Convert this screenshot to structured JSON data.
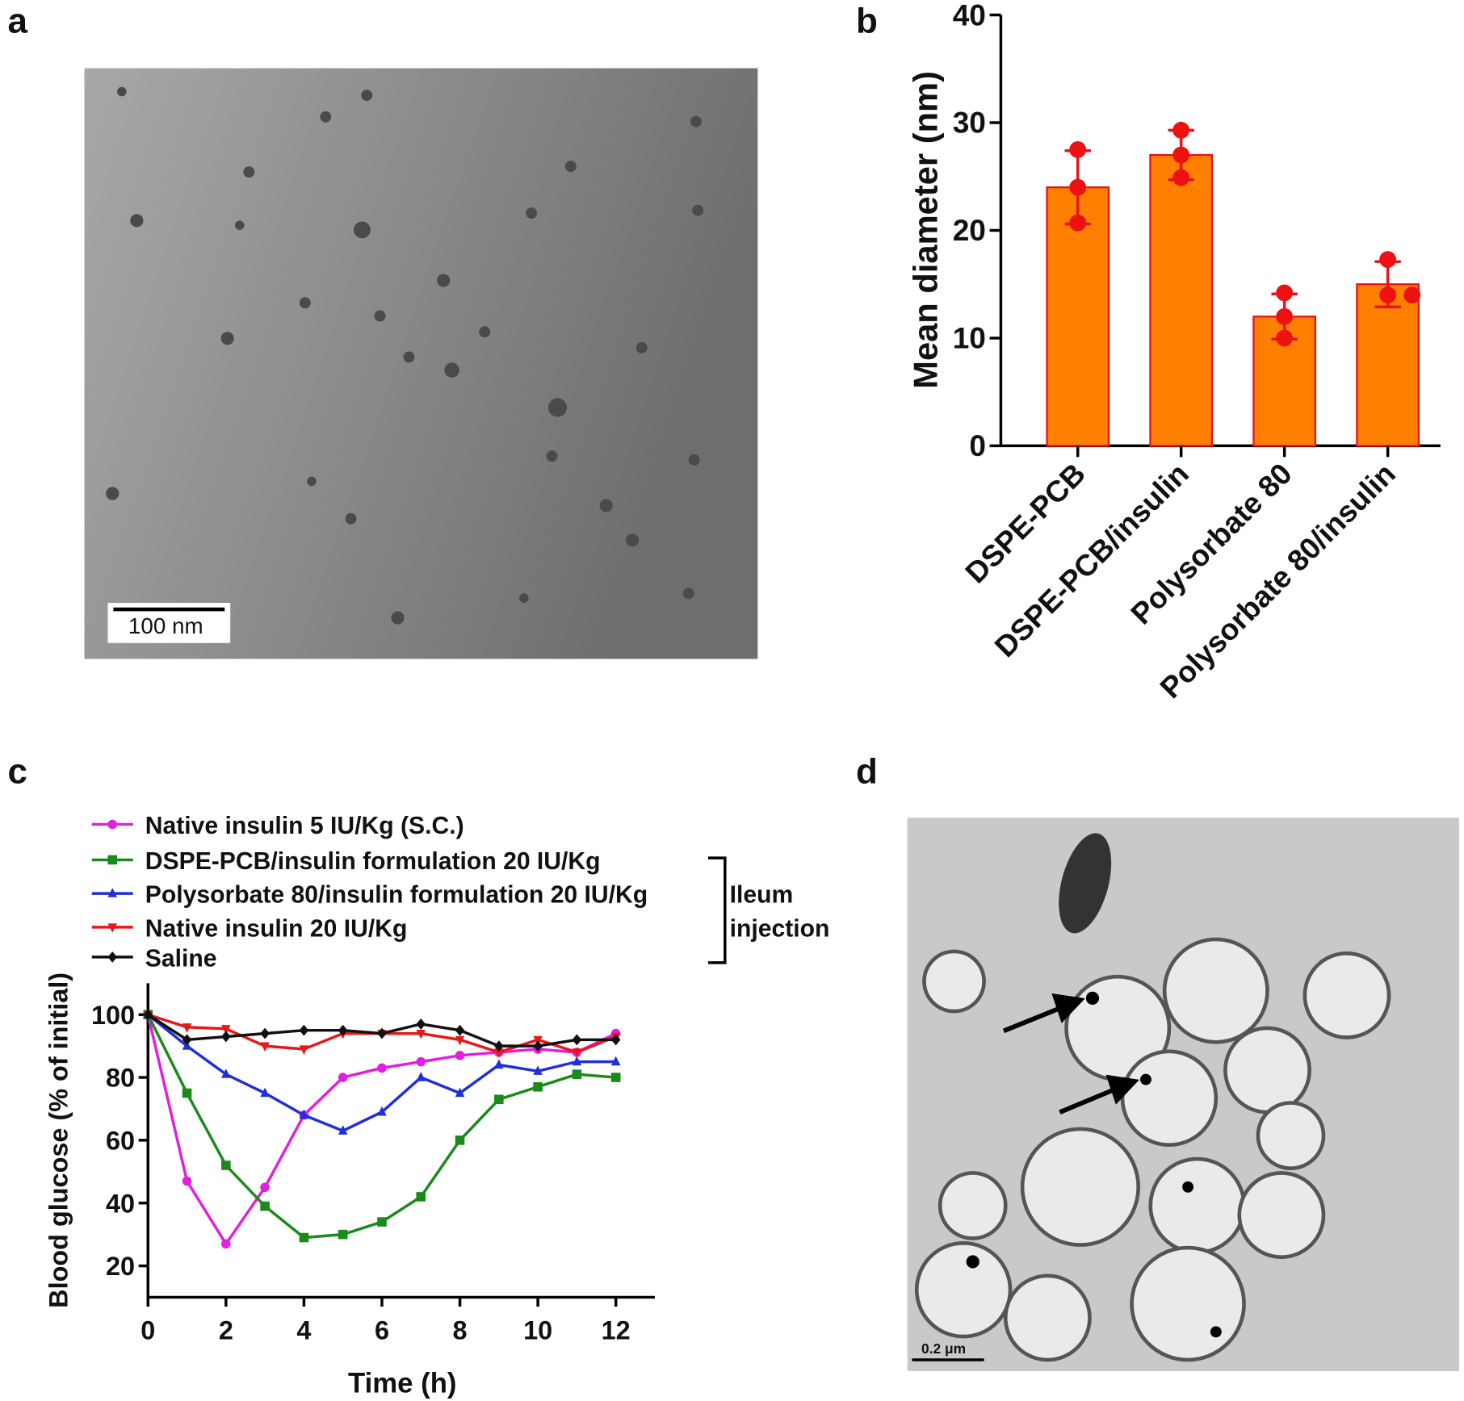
{
  "figure": {
    "panels": [
      {
        "label": "a",
        "scale_bar": "100 nm"
      },
      {
        "label": "b"
      },
      {
        "label": "c"
      },
      {
        "label": "d",
        "scale_bar": "0.2 μm"
      }
    ]
  },
  "chart_data": [
    {
      "type": "bar",
      "ylabel": "Mean diameter (nm)",
      "categories": [
        "DSPE-PCB",
        "DSPE-PCB/insulin",
        "Polysorbate 80",
        "Polysorbate 80/insulin"
      ],
      "values": [
        24,
        27,
        12,
        15
      ],
      "errors": [
        3.4,
        2.3,
        2.1,
        2.1
      ],
      "points": [
        [
          27.5,
          24,
          20.7
        ],
        [
          29.3,
          27,
          24.9
        ],
        [
          14.2,
          12,
          10
        ],
        [
          17.3,
          14,
          14
        ]
      ],
      "color": "#ff8000",
      "edge_color": "#e8121e",
      "point_color": "#ee1111",
      "ylim": [
        0,
        40
      ],
      "yticks": [
        0,
        10,
        20,
        30,
        40
      ]
    },
    {
      "type": "line",
      "xlabel": "Time (h)",
      "ylabel": "Blood glucose (% of initial)",
      "x": [
        0,
        1,
        2,
        3,
        4,
        5,
        6,
        7,
        8,
        9,
        10,
        11,
        12
      ],
      "series": [
        {
          "name": "Native insulin 5 IU/Kg (S.C.)",
          "color": "#e020e0",
          "marker": "circle",
          "values": [
            100,
            47,
            27,
            45,
            68,
            80,
            83,
            85,
            87,
            88,
            89,
            88,
            94
          ]
        },
        {
          "name": "DSPE-PCB/insulin formulation 20 IU/Kg",
          "color": "#1a8a1a",
          "marker": "square",
          "values": [
            100,
            75,
            52,
            39,
            29,
            30,
            34,
            42,
            60,
            73,
            77,
            81,
            80
          ]
        },
        {
          "name": "Polysorbate 80/insulin formulation  20 IU/Kg",
          "color": "#2030d8",
          "marker": "triangle-up",
          "values": [
            100,
            90,
            81,
            75,
            68,
            63,
            69,
            80,
            75,
            84,
            82,
            85,
            85
          ]
        },
        {
          "name": "Native insulin 20 IU/Kg",
          "color": "#e81818",
          "marker": "triangle-down",
          "values": [
            100,
            96,
            95.5,
            90,
            89,
            94,
            94,
            94,
            92,
            88,
            92,
            88,
            93
          ]
        },
        {
          "name": "Saline",
          "color": "#111111",
          "marker": "diamond",
          "values": [
            100,
            92,
            93,
            94,
            95,
            95,
            94,
            97,
            95,
            90,
            90,
            92,
            92
          ]
        }
      ],
      "annotation_lines": [
        "Ileum",
        "injection"
      ],
      "xlim": [
        0,
        13
      ],
      "xticks": [
        0,
        2,
        4,
        6,
        8,
        10,
        12
      ],
      "ylim": [
        10,
        110
      ],
      "yticks": [
        20,
        40,
        60,
        80,
        100
      ]
    }
  ]
}
